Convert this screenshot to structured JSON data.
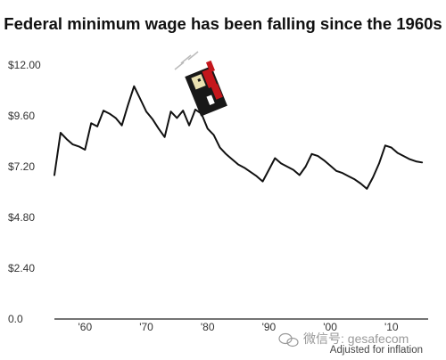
{
  "chart_data": {
    "type": "line",
    "title": "Federal minimum wage has been falling since the 1960s",
    "xlabel": "",
    "ylabel": "",
    "xlim": [
      1955,
      2016
    ],
    "ylim": [
      0,
      12
    ],
    "y_ticks": [
      {
        "value": 12.0,
        "label": "$12.00"
      },
      {
        "value": 9.6,
        "label": "$9.60"
      },
      {
        "value": 7.2,
        "label": "$7.20"
      },
      {
        "value": 4.8,
        "label": "$4.80"
      },
      {
        "value": 2.4,
        "label": "$2.40"
      },
      {
        "value": 0,
        "label": "0.0"
      }
    ],
    "x_ticks": [
      {
        "value": 1960,
        "label": "'60"
      },
      {
        "value": 1970,
        "label": "'70"
      },
      {
        "value": 1980,
        "label": "'80"
      },
      {
        "value": 1990,
        "label": "'90"
      },
      {
        "value": 2000,
        "label": "'00"
      },
      {
        "value": 2010,
        "label": "'10"
      }
    ],
    "grid": false,
    "annotation": "Adjusted for inflation",
    "series": [
      {
        "color": "#111111",
        "x": [
          1955,
          1956,
          1957,
          1958,
          1959,
          1960,
          1961,
          1962,
          1963,
          1964,
          1965,
          1966,
          1967,
          1968,
          1969,
          1970,
          1971,
          1972,
          1973,
          1974,
          1975,
          1976,
          1977,
          1978,
          1979,
          1980,
          1981,
          1982,
          1983,
          1984,
          1985,
          1986,
          1987,
          1988,
          1989,
          1990,
          1991,
          1992,
          1993,
          1994,
          1995,
          1996,
          1997,
          1998,
          1999,
          2000,
          2001,
          2002,
          2003,
          2004,
          2005,
          2006,
          2007,
          2008,
          2009,
          2010,
          2011,
          2012,
          2013,
          2014,
          2015
        ],
        "y": [
          6.8,
          8.8,
          8.5,
          8.25,
          8.15,
          8.0,
          9.25,
          9.1,
          9.85,
          9.7,
          9.5,
          9.15,
          10.1,
          11.0,
          10.4,
          9.8,
          9.45,
          9.0,
          8.6,
          9.8,
          9.5,
          9.85,
          9.15,
          9.9,
          9.7,
          9.0,
          8.7,
          8.1,
          7.8,
          7.55,
          7.3,
          7.15,
          6.95,
          6.75,
          6.5,
          7.05,
          7.6,
          7.35,
          7.2,
          7.05,
          6.8,
          7.2,
          7.8,
          7.7,
          7.5,
          7.25,
          7.0,
          6.9,
          6.75,
          6.6,
          6.4,
          6.15,
          6.7,
          7.35,
          8.2,
          8.1,
          7.85,
          7.7,
          7.55,
          7.45,
          7.4
        ]
      }
    ]
  },
  "watermark": {
    "text": "微信号: gesafecom"
  }
}
